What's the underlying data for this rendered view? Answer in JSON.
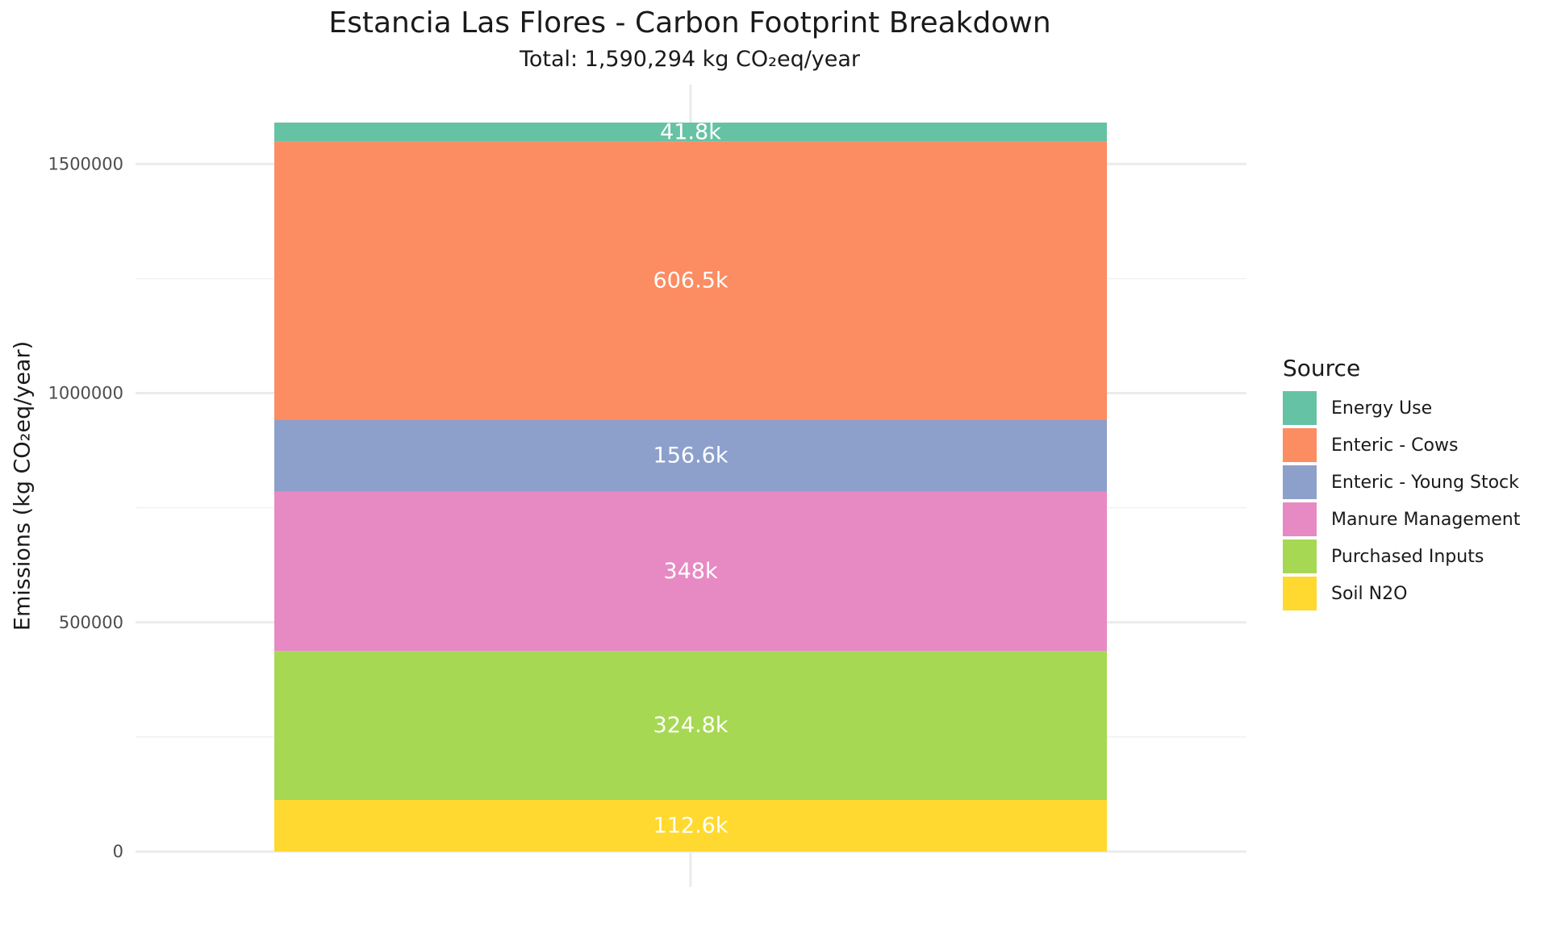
{
  "chart_data": {
    "type": "bar",
    "stacked": true,
    "title": "Estancia Las Flores - Carbon Footprint Breakdown",
    "subtitle": "Total: 1,590,294 kg CO₂eq/year",
    "xlabel": "",
    "ylabel": "Emissions (kg CO₂eq/year)",
    "ylim": [
      0,
      1590294
    ],
    "yticks": [
      0,
      500000,
      1000000,
      1500000
    ],
    "ytick_labels": [
      "0",
      "500000",
      "1000000",
      "1500000"
    ],
    "grid": true,
    "legend": {
      "title": "Source",
      "position": "right"
    },
    "series": [
      {
        "name": "Soil N2O",
        "value": 112600,
        "label": "112.6k",
        "color": "#FFD92F"
      },
      {
        "name": "Purchased Inputs",
        "value": 324800,
        "label": "324.8k",
        "color": "#A6D854"
      },
      {
        "name": "Manure Management",
        "value": 348000,
        "label": "348k",
        "color": "#E78AC3"
      },
      {
        "name": "Enteric - Young Stock",
        "value": 156600,
        "label": "156.6k",
        "color": "#8DA0CB"
      },
      {
        "name": "Enteric - Cows",
        "value": 606500,
        "label": "606.5k",
        "color": "#FC8D62"
      },
      {
        "name": "Energy Use",
        "value": 41800,
        "label": "41.8k",
        "color": "#66C2A5"
      }
    ],
    "legend_order": [
      "Energy Use",
      "Enteric - Cows",
      "Enteric - Young Stock",
      "Manure Management",
      "Purchased Inputs",
      "Soil N2O"
    ]
  }
}
